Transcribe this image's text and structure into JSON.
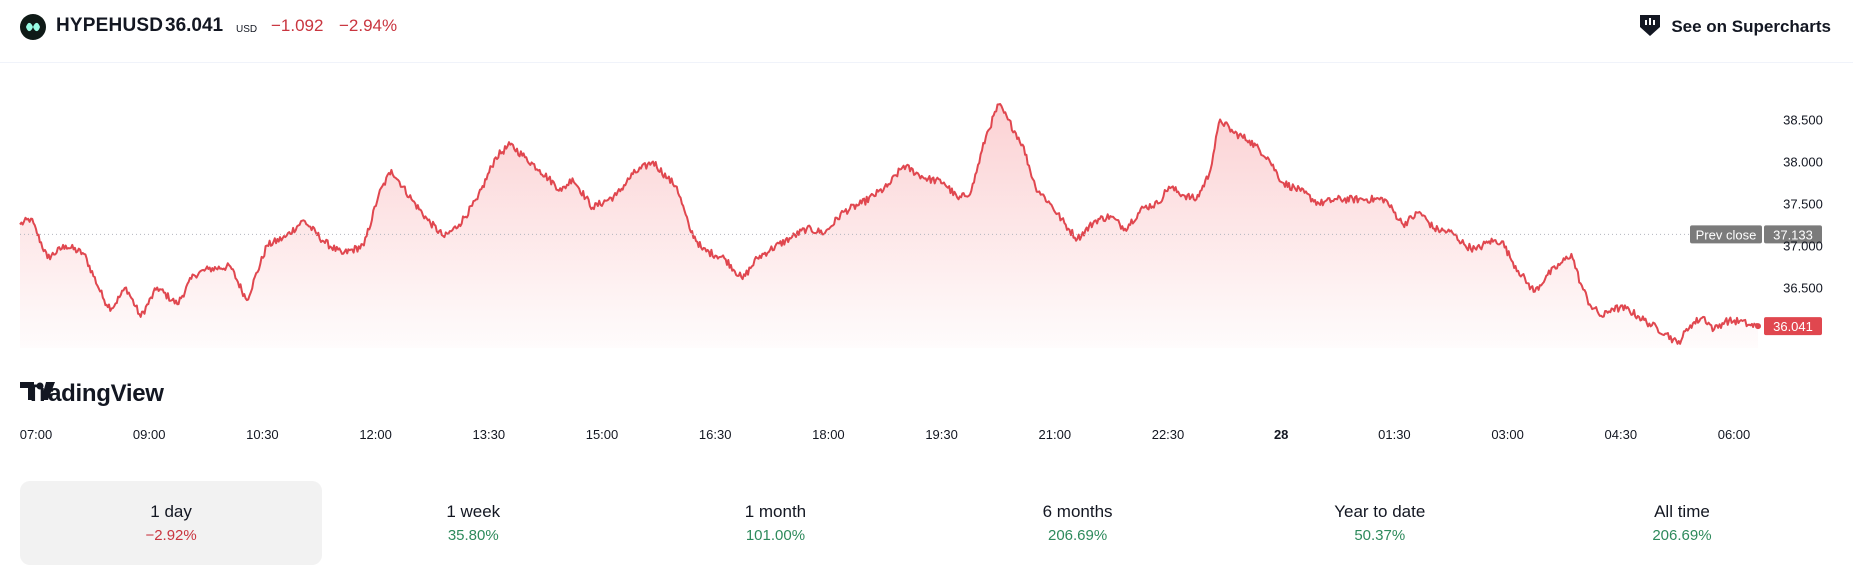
{
  "header": {
    "symbol": "HYPEHUSD",
    "price": "36.041",
    "currency": "USD",
    "change": "−1.092",
    "change_pct": "−2.94%",
    "supercharts_label": "See on Supercharts"
  },
  "chart_data": {
    "type": "area",
    "symbol": "HYPEHUSD",
    "x_tick_labels": [
      "07:00",
      "09:00",
      "10:30",
      "12:00",
      "13:30",
      "15:00",
      "16:30",
      "18:00",
      "19:30",
      "21:00",
      "22:30",
      "28",
      "01:30",
      "03:00",
      "04:30",
      "06:00"
    ],
    "y_tick_labels": [
      "38.500",
      "38.000",
      "37.500",
      "37.000",
      "36.500"
    ],
    "ylim": [
      35.78,
      38.78
    ],
    "prev_close": {
      "label": "Prev close",
      "value": "37.133"
    },
    "last_price": {
      "label": "36.041",
      "value": 36.041
    },
    "anchors": [
      [
        0,
        37.25
      ],
      [
        0.6,
        37.32
      ],
      [
        1.5,
        36.85
      ],
      [
        2.5,
        37.0
      ],
      [
        3.5,
        36.9
      ],
      [
        4.6,
        36.35
      ],
      [
        5.0,
        36.25
      ],
      [
        5.8,
        36.5
      ],
      [
        6.6,
        36.15
      ],
      [
        7.5,
        36.5
      ],
      [
        8.6,
        36.3
      ],
      [
        9.5,
        36.65
      ],
      [
        10.3,
        36.72
      ],
      [
        11.5,
        36.75
      ],
      [
        12.4,
        36.35
      ],
      [
        13.5,
        37.0
      ],
      [
        14.5,
        37.1
      ],
      [
        15.5,
        37.3
      ],
      [
        16.6,
        37.05
      ],
      [
        17.6,
        36.9
      ],
      [
        18.8,
        37.0
      ],
      [
        19.6,
        37.6
      ],
      [
        20.3,
        37.9
      ],
      [
        21.4,
        37.55
      ],
      [
        22.3,
        37.3
      ],
      [
        23.2,
        37.1
      ],
      [
        24.0,
        37.25
      ],
      [
        25.0,
        37.55
      ],
      [
        26.0,
        38.05
      ],
      [
        26.8,
        38.2
      ],
      [
        27.6,
        38.05
      ],
      [
        28.4,
        37.9
      ],
      [
        29.6,
        37.65
      ],
      [
        30.2,
        37.8
      ],
      [
        31.3,
        37.45
      ],
      [
        32.6,
        37.6
      ],
      [
        33.5,
        37.85
      ],
      [
        34.6,
        38.0
      ],
      [
        35.4,
        37.8
      ],
      [
        35.9,
        37.7
      ],
      [
        36.6,
        37.2
      ],
      [
        37.3,
        36.95
      ],
      [
        38.5,
        36.85
      ],
      [
        39.5,
        36.6
      ],
      [
        40.3,
        36.85
      ],
      [
        41.0,
        36.95
      ],
      [
        42.2,
        37.1
      ],
      [
        43.0,
        37.2
      ],
      [
        44.0,
        37.15
      ],
      [
        45.0,
        37.4
      ],
      [
        46.0,
        37.5
      ],
      [
        47.4,
        37.7
      ],
      [
        48.3,
        37.95
      ],
      [
        49.5,
        37.8
      ],
      [
        50.5,
        37.75
      ],
      [
        51.3,
        37.55
      ],
      [
        52.0,
        37.65
      ],
      [
        52.8,
        38.3
      ],
      [
        53.5,
        38.68
      ],
      [
        54.0,
        38.5
      ],
      [
        54.8,
        38.2
      ],
      [
        55.5,
        37.7
      ],
      [
        56.3,
        37.5
      ],
      [
        57.3,
        37.2
      ],
      [
        57.8,
        37.08
      ],
      [
        58.8,
        37.3
      ],
      [
        59.6,
        37.35
      ],
      [
        60.4,
        37.2
      ],
      [
        61.4,
        37.45
      ],
      [
        62.2,
        37.5
      ],
      [
        62.8,
        37.7
      ],
      [
        63.6,
        37.6
      ],
      [
        64.3,
        37.55
      ],
      [
        65.0,
        37.85
      ],
      [
        65.6,
        38.5
      ],
      [
        66.3,
        38.35
      ],
      [
        67.2,
        38.25
      ],
      [
        68.2,
        38.05
      ],
      [
        69.0,
        37.75
      ],
      [
        70.0,
        37.65
      ],
      [
        71.0,
        37.5
      ],
      [
        72.0,
        37.55
      ],
      [
        73.4,
        37.55
      ],
      [
        74.6,
        37.55
      ],
      [
        75.6,
        37.25
      ],
      [
        76.5,
        37.4
      ],
      [
        77.3,
        37.2
      ],
      [
        78.3,
        37.15
      ],
      [
        79.0,
        37.0
      ],
      [
        79.6,
        36.95
      ],
      [
        80.3,
        37.05
      ],
      [
        81.0,
        37.05
      ],
      [
        81.6,
        36.8
      ],
      [
        82.4,
        36.55
      ],
      [
        82.8,
        36.45
      ],
      [
        83.5,
        36.65
      ],
      [
        84.3,
        36.8
      ],
      [
        84.8,
        36.9
      ],
      [
        85.3,
        36.55
      ],
      [
        85.8,
        36.3
      ],
      [
        86.5,
        36.15
      ],
      [
        87.0,
        36.25
      ],
      [
        87.8,
        36.25
      ],
      [
        88.5,
        36.15
      ],
      [
        89.2,
        36.05
      ],
      [
        90.0,
        35.95
      ],
      [
        90.6,
        35.83
      ],
      [
        91.3,
        36.05
      ],
      [
        92.0,
        36.15
      ],
      [
        92.6,
        36.0
      ],
      [
        93.2,
        36.1
      ],
      [
        94.0,
        36.1
      ],
      [
        94.6,
        36.05
      ],
      [
        95.0,
        36.041
      ]
    ]
  },
  "periods": [
    {
      "label": "1 day",
      "value": "−2.92%",
      "trend": "neg",
      "active": true
    },
    {
      "label": "1 week",
      "value": "35.80%",
      "trend": "pos",
      "active": false
    },
    {
      "label": "1 month",
      "value": "101.00%",
      "trend": "pos",
      "active": false
    },
    {
      "label": "6 months",
      "value": "206.69%",
      "trend": "pos",
      "active": false
    },
    {
      "label": "Year to date",
      "value": "50.37%",
      "trend": "pos",
      "active": false
    },
    {
      "label": "All time",
      "value": "206.69%",
      "trend": "pos",
      "active": false
    }
  ],
  "watermark": "TradingView",
  "colors": {
    "line": "#e0474f",
    "negative": "#c9353f",
    "positive": "#2e8a5c",
    "prev_close_tag": "#7b7b7b"
  }
}
